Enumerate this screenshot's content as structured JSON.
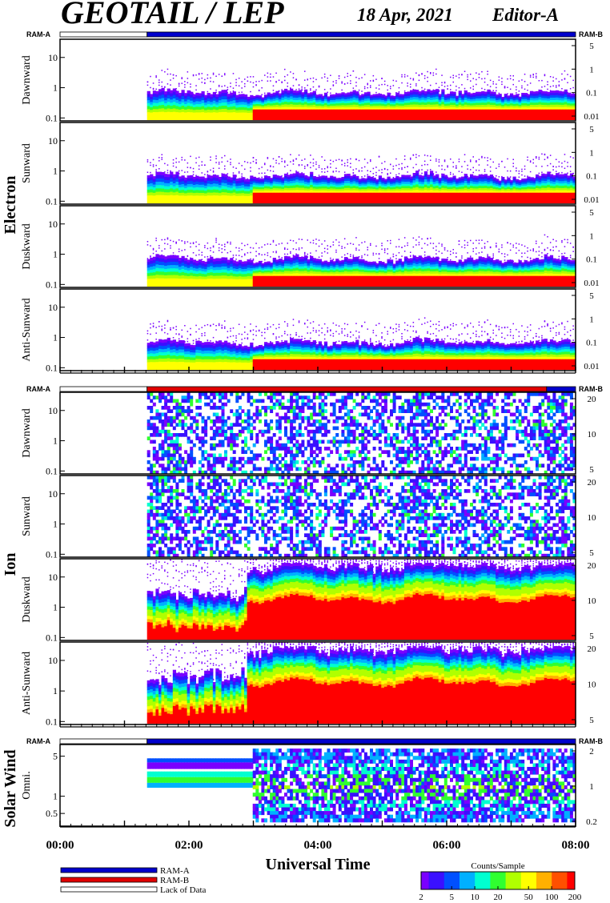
{
  "header": {
    "title": "GEOTAIL / LEP",
    "date": "18 Apr, 2021",
    "editor": "Editor-A"
  },
  "colors": {
    "ram_a": "#0000cc",
    "ram_b": "#e00000",
    "lack": "#ffffff",
    "scale": [
      "#7a00ff",
      "#3a10ff",
      "#0050ff",
      "#00b0ff",
      "#00ffd0",
      "#30ff30",
      "#b0ff00",
      "#ffff00",
      "#ffb000",
      "#ff5000",
      "#ff0000"
    ]
  },
  "chart_data": {
    "type": "heatmap",
    "title": "GEOTAIL / LEP",
    "xlabel": "Universal Time",
    "x_ticks": [
      "00:00",
      "02:00",
      "04:00",
      "06:00",
      "08:00"
    ],
    "x_range_hours": [
      0,
      8
    ],
    "data_start_hours": 1.35,
    "ram_label_left": "RAM-A",
    "ram_label_right": "RAM-B",
    "groups": [
      {
        "name": "Electron",
        "ram_bar": [
          {
            "from": 0,
            "to": 1.35,
            "mode": "lack"
          },
          {
            "from": 1.35,
            "to": 8,
            "mode": "ram_a"
          }
        ],
        "panels": [
          {
            "label": "Dawnward",
            "y_left_ticks": [
              "0.1",
              "1",
              "10"
            ],
            "y_right_ticks": [
              "5",
              "1",
              "0.1",
              "0.01"
            ],
            "ylim": [
              0.08,
              40
            ],
            "kind": "electron"
          },
          {
            "label": "Sunward",
            "y_left_ticks": [
              "0.1",
              "1",
              "10"
            ],
            "y_right_ticks": [
              "5",
              "1",
              "0.1",
              "0.01"
            ],
            "ylim": [
              0.08,
              40
            ],
            "kind": "electron"
          },
          {
            "label": "Duskward",
            "y_left_ticks": [
              "0.1",
              "1",
              "10"
            ],
            "y_right_ticks": [
              "5",
              "1",
              "0.1",
              "0.01"
            ],
            "ylim": [
              0.08,
              40
            ],
            "kind": "electron"
          },
          {
            "label": "Anti-Sunward",
            "y_left_ticks": [
              "0.1",
              "1",
              "10"
            ],
            "y_right_ticks": [
              "5",
              "1",
              "0.1",
              "0.01"
            ],
            "ylim": [
              0.08,
              40
            ],
            "kind": "electron"
          }
        ]
      },
      {
        "name": "Ion",
        "ram_bar": [
          {
            "from": 0,
            "to": 1.35,
            "mode": "lack"
          },
          {
            "from": 1.35,
            "to": 7.55,
            "mode": "ram_b"
          },
          {
            "from": 7.55,
            "to": 8,
            "mode": "ram_a"
          }
        ],
        "panels": [
          {
            "label": "Dawnward",
            "y_left_ticks": [
              "0.1",
              "1",
              "10"
            ],
            "y_right_ticks": [
              "20",
              "10",
              "5"
            ],
            "ylim": [
              0.08,
              40
            ],
            "kind": "ion_sparse"
          },
          {
            "label": "Sunward",
            "y_left_ticks": [
              "0.1",
              "1",
              "10"
            ],
            "y_right_ticks": [
              "20",
              "10",
              "5"
            ],
            "ylim": [
              0.08,
              40
            ],
            "kind": "ion_sparse"
          },
          {
            "label": "Duskward",
            "y_left_ticks": [
              "0.1",
              "1",
              "10"
            ],
            "y_right_ticks": [
              "20",
              "10",
              "5"
            ],
            "ylim": [
              0.08,
              40
            ],
            "kind": "ion_dense"
          },
          {
            "label": "Anti-Sunward",
            "y_left_ticks": [
              "0.1",
              "1",
              "10"
            ],
            "y_right_ticks": [
              "20",
              "10",
              "5"
            ],
            "ylim": [
              0.08,
              40
            ],
            "kind": "ion_dense"
          }
        ]
      },
      {
        "name": "Solar Wind",
        "ram_bar": [
          {
            "from": 0,
            "to": 1.35,
            "mode": "lack"
          },
          {
            "from": 1.35,
            "to": 8,
            "mode": "ram_a"
          }
        ],
        "panels": [
          {
            "label": "Omni.",
            "y_left_ticks": [
              "0.5",
              "1",
              "5"
            ],
            "y_right_ticks": [
              "2",
              "1",
              "0.2"
            ],
            "ylim": [
              0.3,
              8
            ],
            "kind": "solar"
          }
        ]
      }
    ],
    "legend": [
      {
        "label": "RAM-A",
        "mode": "ram_a"
      },
      {
        "label": "RAM-B",
        "mode": "ram_b"
      },
      {
        "label": "Lack of Data",
        "mode": "lack"
      }
    ],
    "colorbar": {
      "title": "Counts/Sample",
      "ticks": [
        "2",
        "5",
        "10",
        "20",
        "50",
        "100",
        "200"
      ],
      "range": [
        2,
        200
      ],
      "scale": "log"
    }
  }
}
